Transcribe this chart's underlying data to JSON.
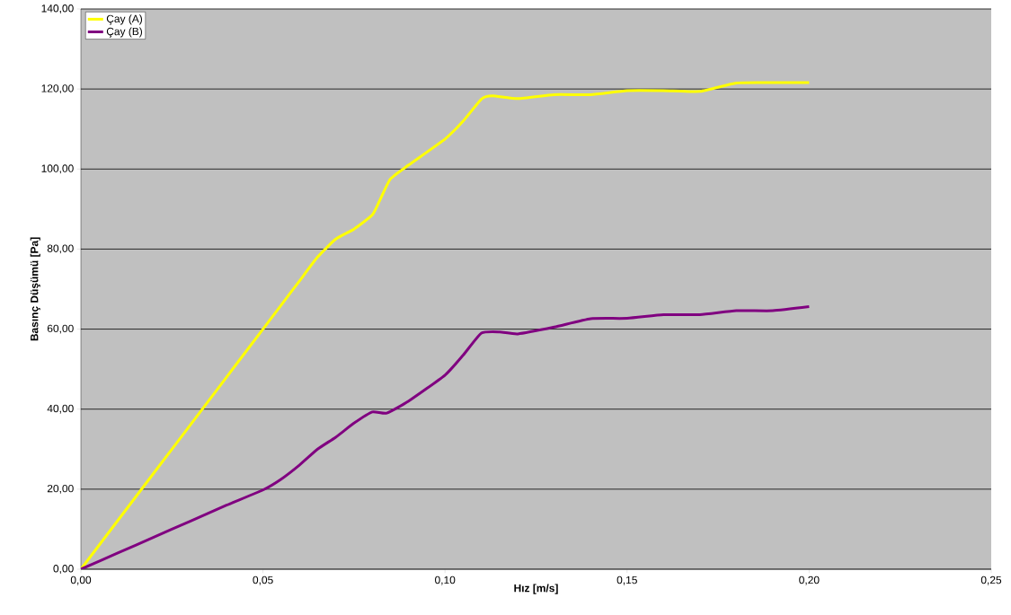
{
  "chart_data": {
    "type": "line",
    "xlabel": "Hız [m/s]",
    "ylabel": "Basınç Düşümü [Pa]",
    "xlim": [
      0,
      0.25
    ],
    "ylim": [
      0,
      140
    ],
    "xticks": [
      {
        "value": 0,
        "label": "0,00"
      },
      {
        "value": 0.05,
        "label": "0,05"
      },
      {
        "value": 0.1,
        "label": "0,10"
      },
      {
        "value": 0.15,
        "label": "0,15"
      },
      {
        "value": 0.2,
        "label": "0,20"
      },
      {
        "value": 0.25,
        "label": "0,25"
      }
    ],
    "yticks": [
      {
        "value": 0,
        "label": "0,00"
      },
      {
        "value": 20,
        "label": "20,00"
      },
      {
        "value": 40,
        "label": "40,00"
      },
      {
        "value": 60,
        "label": "60,00"
      },
      {
        "value": 80,
        "label": "80,00"
      },
      {
        "value": 100,
        "label": "100,00"
      },
      {
        "value": 120,
        "label": "120,00"
      },
      {
        "value": 140,
        "label": "140,00"
      }
    ],
    "grid": "y",
    "legend": "top left",
    "line_style": "solid",
    "series": [
      {
        "name": "Çay (A)",
        "color": "#ffff00",
        "x": [
          0,
          0.01,
          0.02,
          0.03,
          0.04,
          0.05,
          0.055,
          0.06,
          0.065,
          0.07,
          0.075,
          0.08,
          0.082,
          0.085,
          0.09,
          0.1,
          0.105,
          0.11,
          0.113,
          0.12,
          0.13,
          0.14,
          0.15,
          0.16,
          0.17,
          0.18,
          0.19,
          0.2
        ],
        "values": [
          0,
          12,
          24,
          36,
          48,
          60,
          66,
          72,
          78,
          82.5,
          85,
          88.5,
          92,
          97.5,
          101,
          107.5,
          112,
          117.5,
          118.3,
          117.6,
          118.6,
          118.6,
          119.6,
          119.6,
          119.4,
          121.5,
          121.6,
          121.6
        ]
      },
      {
        "name": "Çay (B)",
        "color": "#800080",
        "x": [
          0,
          0.01,
          0.02,
          0.03,
          0.04,
          0.05,
          0.055,
          0.06,
          0.065,
          0.07,
          0.075,
          0.08,
          0.084,
          0.09,
          0.1,
          0.105,
          0.11,
          0.115,
          0.12,
          0.13,
          0.14,
          0.15,
          0.16,
          0.17,
          0.18,
          0.19,
          0.2
        ],
        "values": [
          0,
          4,
          8,
          12,
          16,
          19.8,
          22.5,
          26,
          30,
          33,
          36.5,
          39.3,
          39,
          42,
          48.5,
          53.5,
          59,
          59.3,
          58.8,
          60.5,
          62.6,
          62.7,
          63.6,
          63.6,
          64.6,
          64.6,
          65.6
        ]
      }
    ]
  }
}
